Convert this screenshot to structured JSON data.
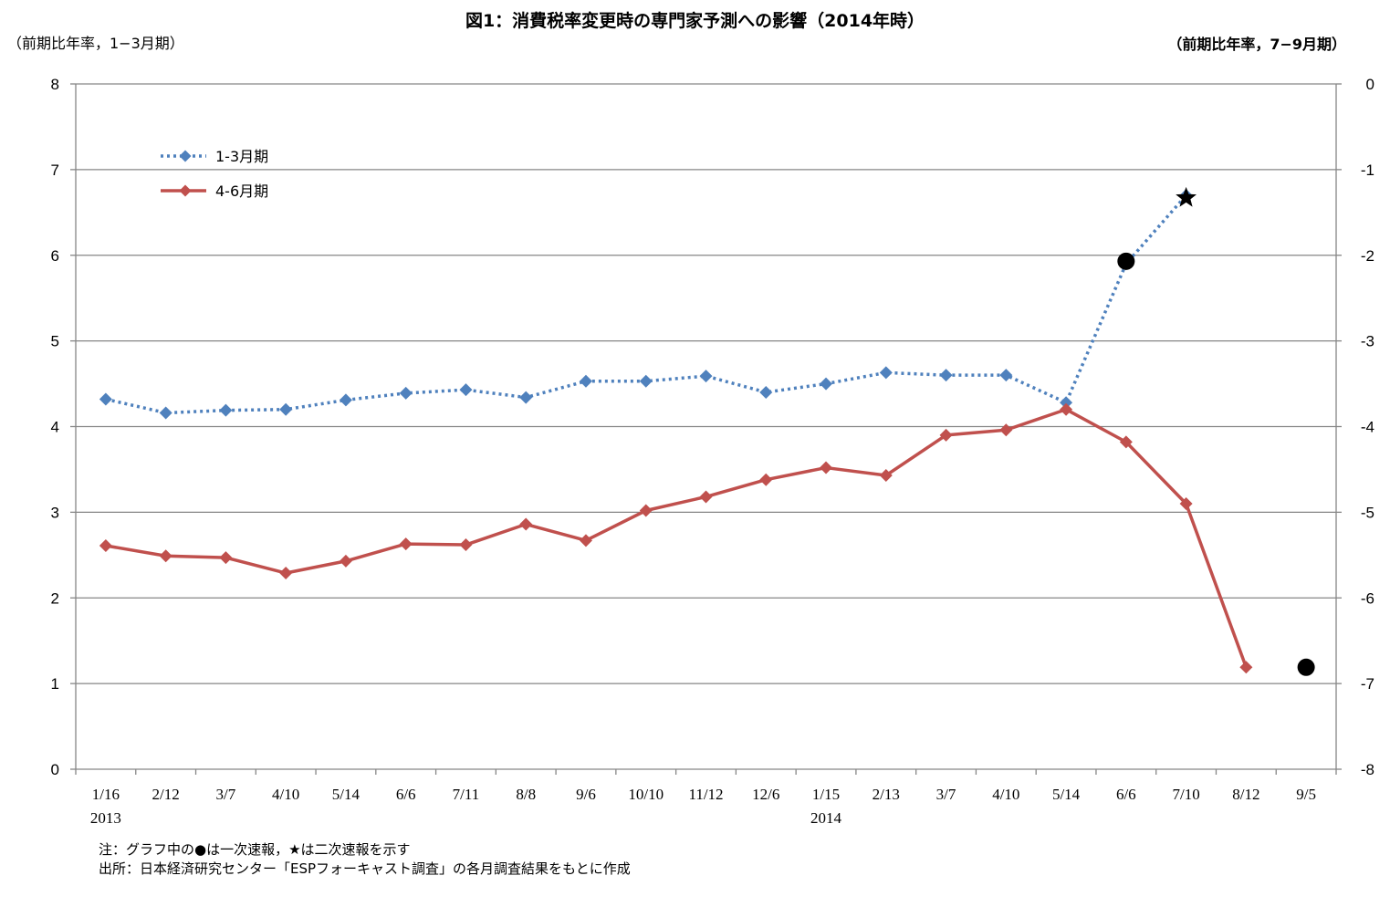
{
  "title": "図1：消費税率変更時の専門家予測への影響（2014年時）",
  "left_axis_unit": "（前期比年率，1−3月期）",
  "right_axis_unit": "（前期比年率，7−9月期）",
  "notes": [
    "注：グラフ中の●は一次速報，★は二次速報を示す",
    "出所：日本経済研究センター「ESPフォーキャスト調査」の各月調査結果をもとに作成"
  ],
  "colors": {
    "series_1_3": "#4f81bd",
    "series_4_6": "#c0504d",
    "marker": "#000000",
    "grid": "#868686"
  },
  "chart_data": {
    "type": "line",
    "categories": [
      "1/16",
      "2/12",
      "3/7",
      "4/10",
      "5/14",
      "6/6",
      "7/11",
      "8/8",
      "9/6",
      "10/10",
      "11/12",
      "12/6",
      "1/15",
      "2/13",
      "3/7",
      "4/10",
      "5/14",
      "6/6",
      "7/10",
      "8/12",
      "9/5"
    ],
    "category_sublabels": [
      "2013",
      "",
      "",
      "",
      "",
      "",
      "",
      "",
      "",
      "",
      "",
      "",
      "2014",
      "",
      "",
      "",
      "",
      "",
      "",
      "",
      ""
    ],
    "left_ylim": [
      0,
      8
    ],
    "left_yticks": [
      "0",
      "1",
      "2",
      "3",
      "4",
      "5",
      "6",
      "7",
      "8"
    ],
    "right_ylim": [
      -8,
      0
    ],
    "right_yticks": [
      "-8",
      "-7",
      "-6",
      "-5",
      "-4",
      "-3",
      "-2",
      "-1",
      "0"
    ],
    "grid": true,
    "legend_position": "top-left",
    "series": [
      {
        "name": "1-3月期",
        "axis": "left",
        "style": "dotted",
        "values": [
          4.32,
          4.16,
          4.19,
          4.2,
          4.31,
          4.39,
          4.43,
          4.34,
          4.53,
          4.53,
          4.59,
          4.4,
          4.5,
          4.63,
          4.6,
          4.6,
          4.28,
          5.9,
          6.7,
          null,
          null
        ]
      },
      {
        "name": "4-6月期",
        "axis": "left",
        "style": "solid",
        "values": [
          2.61,
          2.49,
          2.47,
          2.29,
          2.43,
          2.63,
          2.62,
          2.86,
          2.67,
          3.02,
          3.18,
          3.38,
          3.52,
          3.43,
          3.9,
          3.96,
          4.2,
          3.82,
          3.1,
          1.19,
          null
        ]
      }
    ],
    "markers": [
      {
        "symbol": "●",
        "meaning": "一次速報",
        "category_index": 17,
        "value": 5.93
      },
      {
        "symbol": "★",
        "meaning": "二次速報",
        "category_index": 18,
        "value": 6.67
      },
      {
        "symbol": "●",
        "meaning": "一次速報",
        "category_index": 20,
        "value": 1.19
      }
    ]
  }
}
